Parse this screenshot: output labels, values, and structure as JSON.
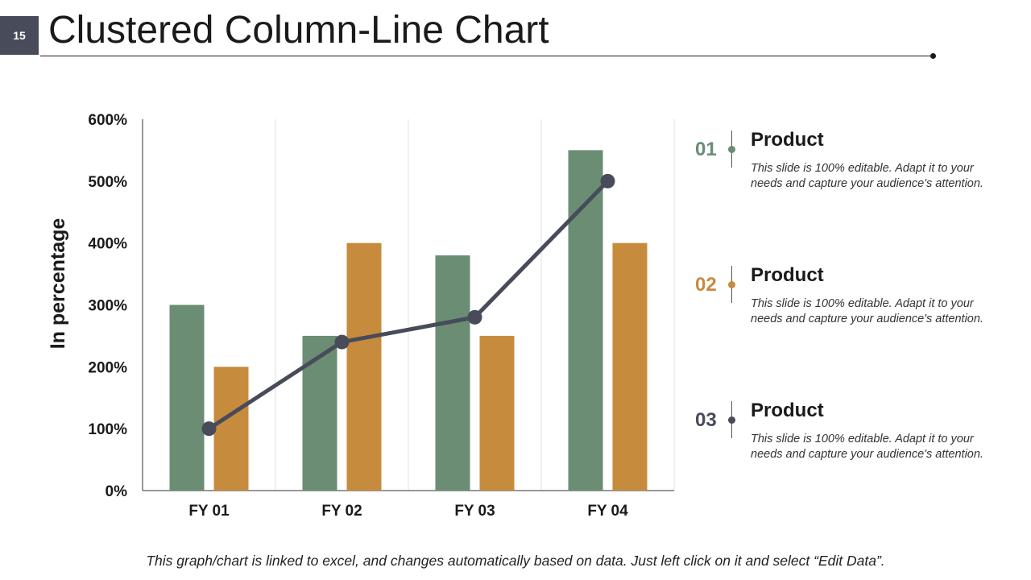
{
  "slide": {
    "number": "15",
    "title": "Clustered Column-Line Chart"
  },
  "chart_data": {
    "type": "bar",
    "categories": [
      "FY 01",
      "FY 02",
      "FY 03",
      "FY 04"
    ],
    "series": [
      {
        "type": "bar",
        "color": "#6a8d73",
        "values": [
          300,
          250,
          380,
          550
        ]
      },
      {
        "type": "bar",
        "color": "#c78b3e",
        "values": [
          200,
          400,
          250,
          400
        ]
      },
      {
        "type": "line",
        "color": "#474b5a",
        "values": [
          100,
          240,
          280,
          500
        ]
      }
    ],
    "ylabel": "In percentage",
    "xlabel": "",
    "ylim": [
      0,
      600
    ],
    "yticks": [
      0,
      100,
      200,
      300,
      400,
      500,
      600
    ],
    "ytick_labels": [
      "0%",
      "100%",
      "200%",
      "300%",
      "400%",
      "500%",
      "600%"
    ],
    "grid": "vertical separators between categories",
    "legend": "right"
  },
  "legend": {
    "items": [
      {
        "number": "01",
        "title": "Product",
        "text": "This slide is 100% editable. Adapt it to your needs and capture your audience's attention.",
        "color": "#6a8d73"
      },
      {
        "number": "02",
        "title": "Product",
        "text": "This slide is 100% editable. Adapt it to your needs and capture your audience's attention.",
        "color": "#c78b3e"
      },
      {
        "number": "03",
        "title": "Product",
        "text": "This slide is 100% editable. Adapt it to your needs and capture your audience's attention.",
        "color": "#474b5a"
      }
    ]
  },
  "footnote": "This graph/chart is linked to excel, and changes automatically based on data. Just left click on it and select “Edit Data”."
}
